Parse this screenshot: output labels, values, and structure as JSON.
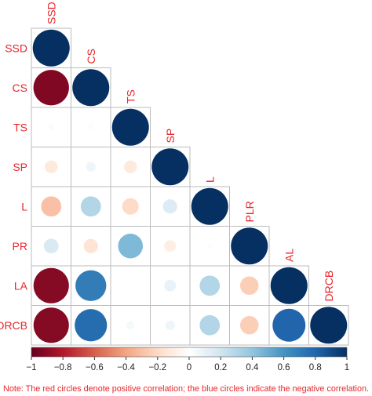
{
  "chart_data": {
    "type": "heatmap",
    "variables": [
      "SSD",
      "CS",
      "TS",
      "SP",
      "L",
      "PR",
      "LA",
      "DRCB"
    ],
    "column_labels": [
      "SSD",
      "CS",
      "TS",
      "SP",
      "L",
      "PLR",
      "AL",
      "DRCB"
    ],
    "matrix_lower": [
      [
        1.0
      ],
      [
        -0.93,
        1.0
      ],
      [
        -0.03,
        0.02,
        1.0
      ],
      [
        -0.12,
        0.07,
        -0.12,
        1.0
      ],
      [
        -0.3,
        0.3,
        -0.2,
        0.15,
        1.0
      ],
      [
        0.16,
        -0.15,
        0.45,
        -0.1,
        0.02,
        1.0
      ],
      [
        -0.92,
        0.7,
        0.0,
        0.1,
        0.3,
        -0.25,
        1.0
      ],
      [
        -0.92,
        0.77,
        0.05,
        0.07,
        0.3,
        -0.25,
        0.8,
        1.0
      ]
    ],
    "colorbar": {
      "range": [
        -1,
        1
      ],
      "ticks": [
        -1,
        -0.8,
        -0.6,
        -0.4,
        -0.2,
        0,
        0.2,
        0.4,
        0.6,
        0.8,
        1
      ],
      "tick_labels": [
        "−1",
        "−0.8",
        "−0.6",
        "−0.4",
        "−0.2",
        "0",
        "0.2",
        "0.4",
        "0.6",
        "0.8",
        "1"
      ],
      "low_color": "#67001f",
      "high_color": "#053061"
    }
  },
  "note": "Note: The red circles denote positive correlation; the blue circles indicate the negative correlation.",
  "colors": {
    "label": "#e8262a",
    "grid": "#bbbbbb"
  }
}
